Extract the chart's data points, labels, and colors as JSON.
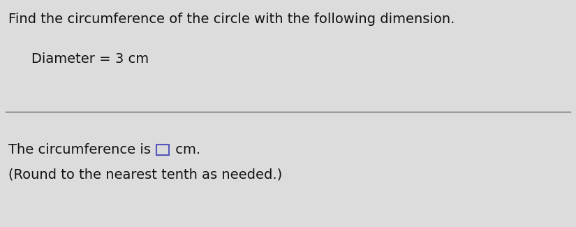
{
  "title_text": "Find the circumference of the circle with the following dimension.",
  "diameter_text": "Diameter = 3 cm",
  "answer_prefix": "The circumference is ",
  "answer_suffix": " cm.",
  "note_text": "(Round to the nearest tenth as needed.)",
  "background_color": "#dcdcdc",
  "text_color": "#111111",
  "box_border_color": "#5555bb",
  "line_color": "#666666",
  "title_fontsize": 14,
  "body_fontsize": 14,
  "figwidth": 8.25,
  "figheight": 3.25,
  "dpi": 100
}
